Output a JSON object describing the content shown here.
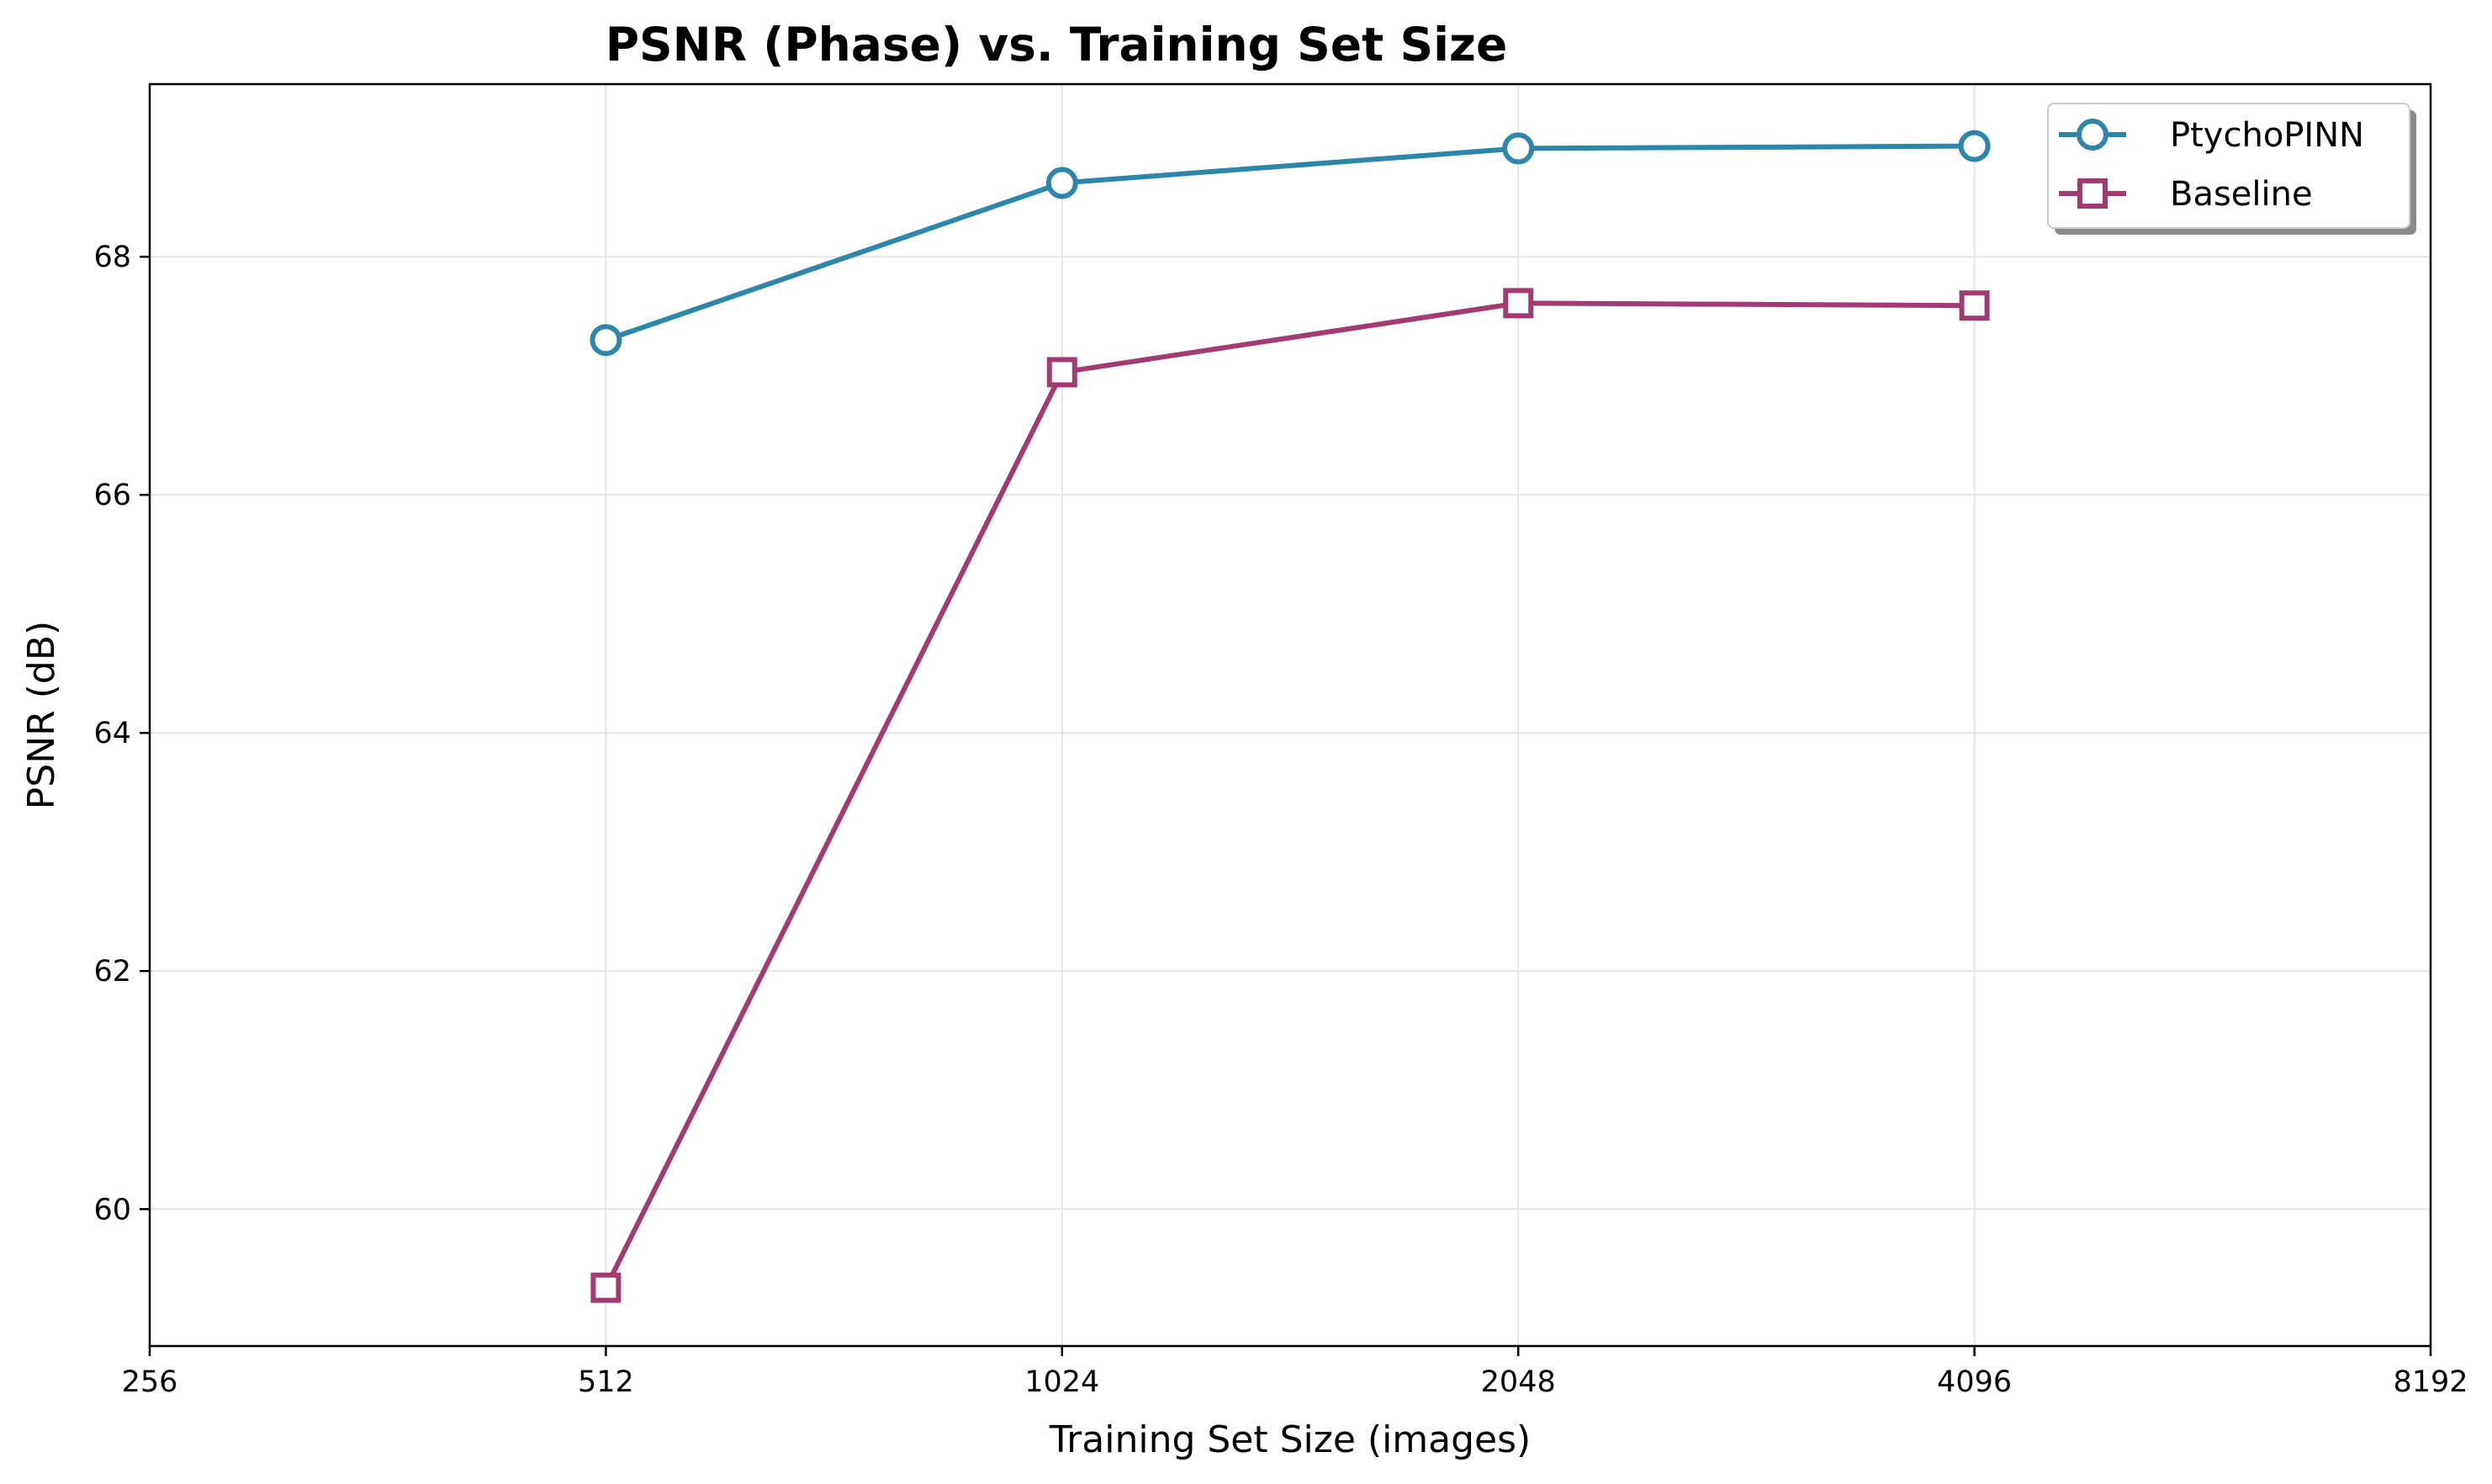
{
  "chart_data": {
    "type": "line",
    "title": "PSNR (Phase) vs. Training Set Size",
    "xlabel": "Training Set Size (images)",
    "ylabel": "PSNR (dB)",
    "x_scale": "log2",
    "xlim": [
      256,
      8192
    ],
    "ylim": [
      58.85,
      69.45
    ],
    "x_ticks": [
      256,
      512,
      1024,
      2048,
      4096,
      8192
    ],
    "x_tick_labels": [
      "256",
      "512",
      "1024",
      "2048",
      "4096",
      "8192"
    ],
    "y_ticks": [
      60,
      62,
      64,
      66,
      68
    ],
    "y_tick_labels": [
      "60",
      "62",
      "64",
      "66",
      "68"
    ],
    "grid": true,
    "legend_position": "top-right",
    "x": [
      512,
      1024,
      2048,
      4096
    ],
    "series": [
      {
        "name": "PtychoPINN",
        "values": [
          67.3,
          68.62,
          68.91,
          68.93
        ],
        "color": "#2e86ab",
        "marker": "circle"
      },
      {
        "name": "Baseline",
        "values": [
          59.34,
          67.03,
          67.61,
          67.59
        ],
        "color": "#a23b72",
        "marker": "square"
      }
    ]
  }
}
